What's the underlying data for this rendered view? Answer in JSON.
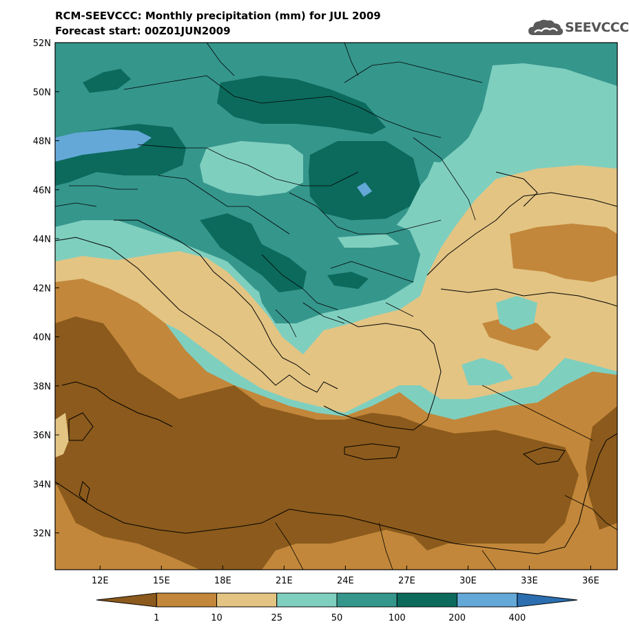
{
  "header": {
    "title": "RCM-SEEVCCC: Monthly precipitation (mm) for JUL 2009",
    "subtitle": "Forecast start: 00Z01JUN2009"
  },
  "logo": {
    "text": "SEEVCCC",
    "icon": "cloud-icon",
    "color": "#555555"
  },
  "map": {
    "lat_labels": [
      "52N",
      "50N",
      "48N",
      "46N",
      "44N",
      "42N",
      "40N",
      "38N",
      "36N",
      "34N",
      "32N"
    ],
    "lat_values": [
      52,
      50,
      48,
      46,
      44,
      42,
      40,
      38,
      36,
      34,
      32
    ],
    "lon_labels": [
      "12E",
      "15E",
      "18E",
      "21E",
      "24E",
      "27E",
      "30E",
      "33E",
      "36E"
    ],
    "lon_values": [
      12,
      15,
      18,
      21,
      24,
      27,
      30,
      33,
      36
    ],
    "lat_range": [
      30.5,
      52
    ],
    "lon_range": [
      9.8,
      37.3
    ]
  },
  "colorbar": {
    "labels": [
      "1",
      "10",
      "25",
      "50",
      "100",
      "200",
      "400"
    ],
    "colors": [
      "#8b5a1c",
      "#c2873a",
      "#e3c483",
      "#7fcfbf",
      "#35968c",
      "#0b6a5c",
      "#64a8d8",
      "#2b6fb0"
    ]
  }
}
